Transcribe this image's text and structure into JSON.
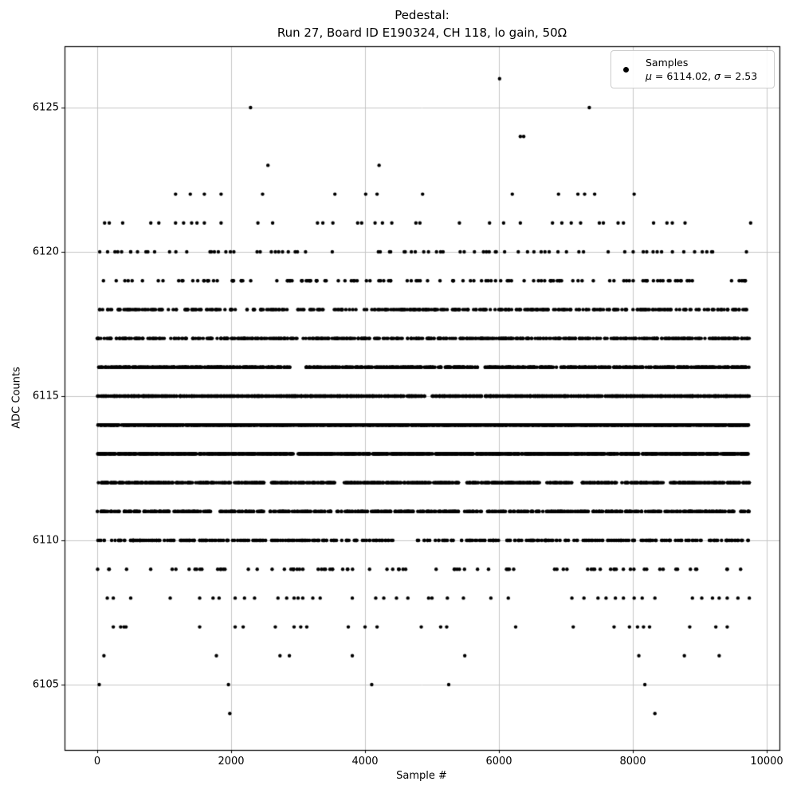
{
  "title": {
    "line1": "Pedestal:",
    "line2": "Run 27, Board ID E190324, CH 118, lo gain, 50Ω"
  },
  "legend": {
    "label": "Samples",
    "stats_parts": [
      {
        "t": "μ",
        "i": 1
      },
      {
        "t": " = 6114.02, ",
        "i": 0
      },
      {
        "t": "σ",
        "i": 1
      },
      {
        "t": " = 2.53",
        "i": 0
      }
    ],
    "marker_color": "#000000",
    "location": "upper right"
  },
  "chart_data": {
    "type": "scatter",
    "title": "Pedestal:\nRun 27, Board ID E190324, CH 118, lo gain, 50Ω",
    "xlabel": "Sample #",
    "ylabel": "ADC Counts",
    "xlim": [
      -490,
      10190
    ],
    "ylim": [
      6102.7,
      6127.1
    ],
    "xticks": [
      0,
      2000,
      4000,
      6000,
      8000,
      10000
    ],
    "yticks": [
      6105,
      6110,
      6115,
      6120,
      6125
    ],
    "grid": true,
    "grid_color": "#c6c6c6",
    "marker": {
      "color": "#000000",
      "radius_px": 2.2
    },
    "mean": 6114.02,
    "sigma": 2.53,
    "n_samples_approx": 9740,
    "series_note": "y = integer ADC count rows; sparse rows list explicit sample positions read from plot; dense rows give approximate point counts spread uniformly over samples 0-9740, minus listed gap intervals",
    "series": [
      {
        "adc": 6126,
        "x": [
          6010
        ]
      },
      {
        "adc": 6125,
        "x": [
          2290,
          7350
        ]
      },
      {
        "adc": 6124,
        "x": [
          6320,
          6370
        ]
      },
      {
        "adc": 6123,
        "x": [
          2550,
          4210
        ]
      },
      {
        "adc": 6122,
        "x": [
          1170,
          1390,
          1600,
          1850,
          2470,
          3550,
          4010,
          4180,
          4860,
          6200,
          6890,
          7180,
          7280,
          7430,
          8020
        ]
      },
      {
        "adc": 6121,
        "x": [
          110,
          180,
          380,
          800,
          920,
          1170,
          1290,
          1410,
          1490,
          1600,
          1850,
          2400,
          2620,
          3290,
          3370,
          3520,
          3890,
          3950,
          4150,
          4260,
          4400,
          4760,
          4820,
          5410,
          5860,
          6070,
          6320,
          6800,
          6940,
          7080,
          7220,
          7500,
          7560,
          7780,
          7860,
          8310,
          8510,
          8590,
          8780,
          9760
        ]
      },
      {
        "adc": 6120,
        "count": 80
      },
      {
        "adc": 6119,
        "count": 130
      },
      {
        "adc": 6118,
        "count": 360
      },
      {
        "adc": 6117,
        "count": 560
      },
      {
        "adc": 6116,
        "count": 950,
        "gaps": [
          [
            2880,
            3120
          ]
        ]
      },
      {
        "adc": 6115,
        "count": 1350,
        "gaps": [
          [
            4890,
            4990
          ]
        ]
      },
      {
        "adc": 6114,
        "count": 1550
      },
      {
        "adc": 6113,
        "count": 1450,
        "gaps": [
          [
            2930,
            3000
          ]
        ]
      },
      {
        "adc": 6112,
        "count": 950,
        "gaps": [
          [
            2500,
            2600
          ],
          [
            3560,
            3660
          ],
          [
            5400,
            5490
          ],
          [
            6630,
            6710
          ],
          [
            7090,
            7170
          ],
          [
            8470,
            8560
          ]
        ]
      },
      {
        "adc": 6111,
        "count": 640
      },
      {
        "adc": 6110,
        "count": 430,
        "gaps": [
          [
            4420,
            4780
          ]
        ]
      },
      {
        "adc": 6109,
        "count": 90
      },
      {
        "adc": 6108,
        "x": [
          150,
          240,
          500,
          1090,
          1530,
          1730,
          1820,
          2060,
          2200,
          2350,
          2700,
          2830,
          2940,
          3000,
          3070,
          3220,
          3330,
          3810,
          4160,
          4280,
          4470,
          4640,
          4950,
          5000,
          5230,
          5470,
          5880,
          6140,
          7090,
          7270,
          7480,
          7600,
          7740,
          7860,
          8020,
          8140,
          8330,
          8890,
          9030,
          9190,
          9290,
          9410,
          9570,
          9740
        ]
      },
      {
        "adc": 6107,
        "x": [
          240,
          350,
          400,
          430,
          1530,
          2060,
          2180,
          2660,
          2940,
          3040,
          3130,
          3750,
          4000,
          4180,
          4840,
          5130,
          5220,
          6250,
          7110,
          7720,
          7950,
          8070,
          8160,
          8250,
          8850,
          9240,
          9410
        ]
      },
      {
        "adc": 6106,
        "x": [
          100,
          1780,
          2730,
          2870,
          3810,
          5490,
          8090,
          8770,
          9290
        ]
      },
      {
        "adc": 6105,
        "x": [
          30,
          1960,
          4100,
          5250,
          8180
        ]
      },
      {
        "adc": 6104,
        "x": [
          1980,
          8330
        ]
      }
    ]
  }
}
